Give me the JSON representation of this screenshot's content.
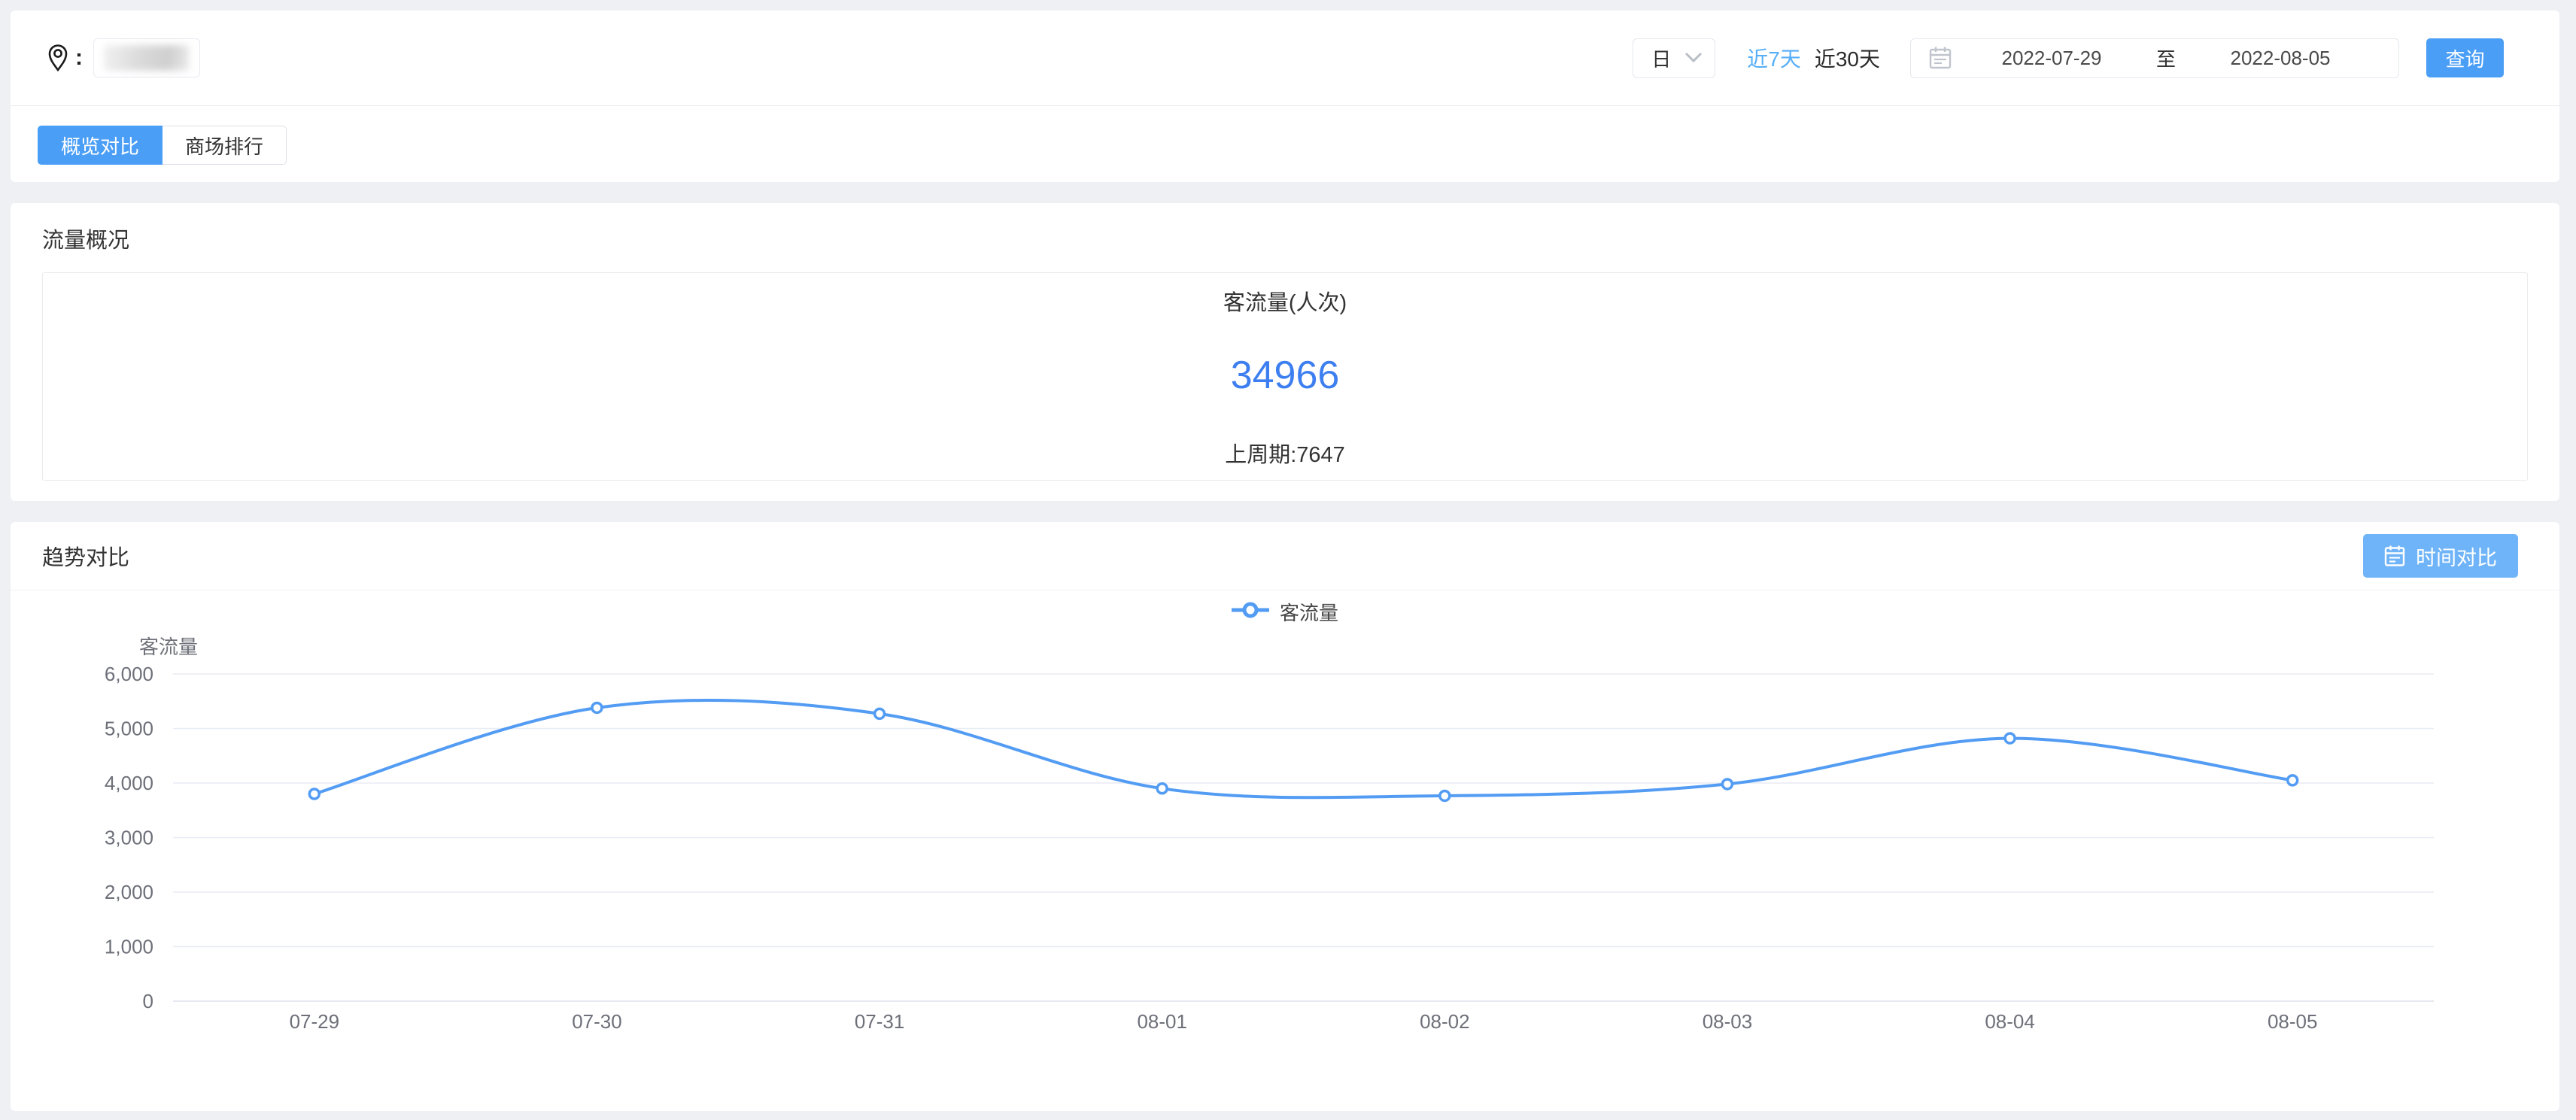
{
  "colors": {
    "accent": "#4A9EF6",
    "accent_light": "#6FB4F8",
    "link": "#56AEF8",
    "number": "#3D7FF0",
    "page_bg": "#EEF0F4"
  },
  "topbar": {
    "location_colon": ":",
    "granularity": {
      "value": "日"
    },
    "quick_ranges": [
      {
        "label": "近7天",
        "active": true
      },
      {
        "label": "近30天",
        "active": false
      }
    ],
    "date_range": {
      "start": "2022-07-29",
      "separator": "至",
      "end": "2022-08-05"
    },
    "search_button": "查询"
  },
  "tabs": [
    {
      "label": "概览对比",
      "active": true
    },
    {
      "label": "商场排行",
      "active": false
    }
  ],
  "overview": {
    "title": "流量概况",
    "metric": {
      "name": "客流量(人次)",
      "value": "34966",
      "previous": "上周期:7647"
    }
  },
  "trend": {
    "title": "趋势对比",
    "compare_button": "时间对比",
    "legend": "客流量"
  },
  "chart_data": {
    "type": "line",
    "title": "",
    "categories": [
      "07-29",
      "07-30",
      "07-31",
      "08-01",
      "08-02",
      "08-03",
      "08-04",
      "08-05"
    ],
    "series": [
      {
        "name": "客流量",
        "values": [
          3800,
          5380,
          5270,
          3900,
          3766,
          3980,
          4820,
          4050
        ]
      }
    ],
    "xlabel": "",
    "ylabel": "客流量",
    "ylim": [
      0,
      6000
    ],
    "yticks": [
      0,
      1000,
      2000,
      3000,
      4000,
      5000,
      6000
    ],
    "ytick_labels": [
      "0",
      "1,000",
      "2,000",
      "3,000",
      "4,000",
      "5,000",
      "6,000"
    ],
    "grid": true,
    "smooth": true,
    "legend_position": "top-center",
    "line_color": "#539CF3",
    "marker": "open-circle",
    "grid_color": "#E8ECF4",
    "axis_label_color": "#6E7079"
  }
}
